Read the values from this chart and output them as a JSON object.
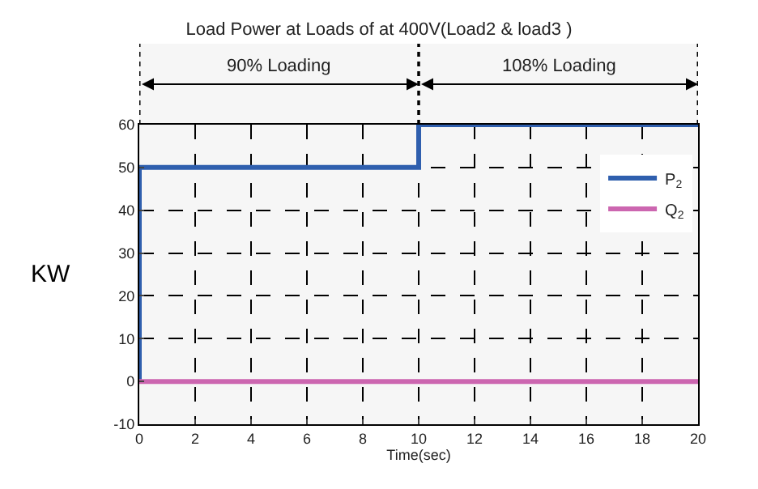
{
  "chart_data": {
    "type": "line",
    "title": "Load Power at Loads of at 400V(Load2 & load3 )",
    "xlabel": "Time(sec)",
    "ylabel": "KW",
    "series": [
      {
        "name": "P$_{2}$",
        "color": "#2f5fae",
        "x": [
          0,
          0,
          10,
          10,
          20
        ],
        "values": [
          0,
          50,
          50,
          60,
          60
        ]
      },
      {
        "name": "Q$_{2}$",
        "color": "#cc66b0",
        "x": [
          0,
          20
        ],
        "values": [
          0,
          0
        ]
      }
    ],
    "xlim": [
      0,
      20
    ],
    "xticks": [
      0,
      2,
      4,
      6,
      8,
      10,
      12,
      14,
      16,
      18,
      20
    ],
    "ylim": [
      -10,
      60
    ],
    "yticks": [
      -10,
      0,
      10,
      20,
      30,
      40,
      50,
      60
    ],
    "bands": [
      {
        "axis": "x",
        "from": 0,
        "to": 10,
        "label": "90% Loading"
      },
      {
        "axis": "x",
        "from": 10,
        "to": 20,
        "label": "108% Loading"
      }
    ],
    "grid": true,
    "legend": "right",
    "marker": "none",
    "line_style": "solid"
  }
}
